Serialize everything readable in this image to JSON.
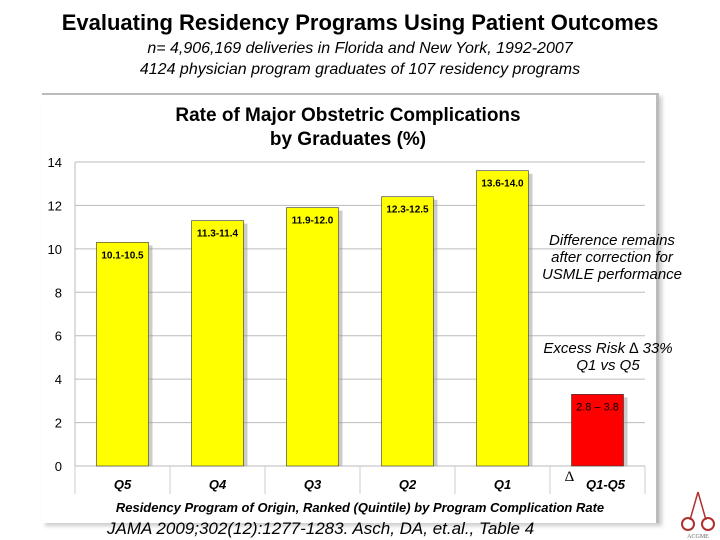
{
  "header": {
    "title": "Evaluating Residency Programs Using Patient Outcomes",
    "subtitle1": "n= 4,906,169 deliveries in Florida and New York, 1992-2007",
    "subtitle2": "4124 physician program graduates of 107 residency programs"
  },
  "chart_data": {
    "type": "bar",
    "title": "Rate of Major Obstetric Complications by Graduates (%)",
    "title_lines": [
      "Rate of Major Obstetric Complications",
      "by Graduates (%)"
    ],
    "xlabel": "Residency Program of Origin, Ranked (Quintile) by Program Complication Rate",
    "ylabel": "",
    "ylim": [
      0,
      14
    ],
    "yticks": [
      0,
      2,
      4,
      6,
      8,
      10,
      12,
      14
    ],
    "grid": true,
    "categories": [
      "Q5",
      "Q4",
      "Q3",
      "Q2",
      "Q1",
      "Q1-Q5"
    ],
    "category_prefix": [
      "",
      "",
      "",
      "",
      "",
      "Δ"
    ],
    "values": [
      10.3,
      11.3,
      11.9,
      12.4,
      13.6,
      3.3
    ],
    "data_labels": [
      "10.1-10.5",
      "11.3-11.4",
      "11.9-12.0",
      "12.3-12.5",
      "13.6-14.0",
      "2.8 – 3.8"
    ],
    "colors": [
      "#ffff00",
      "#ffff00",
      "#ffff00",
      "#ffff00",
      "#ffff00",
      "#ff0000"
    ]
  },
  "notes": {
    "difference": "Difference remains after correction for USMLE performance",
    "excess_line1": "Excess Risk ∆ 33%",
    "excess_line2": "Q1 vs Q5"
  },
  "citation": "JAMA 2009;302(12):1277-1283. Asch, DA, et.al., Table 4",
  "logo": {
    "text": "ACGME",
    "color": "#b03030"
  }
}
